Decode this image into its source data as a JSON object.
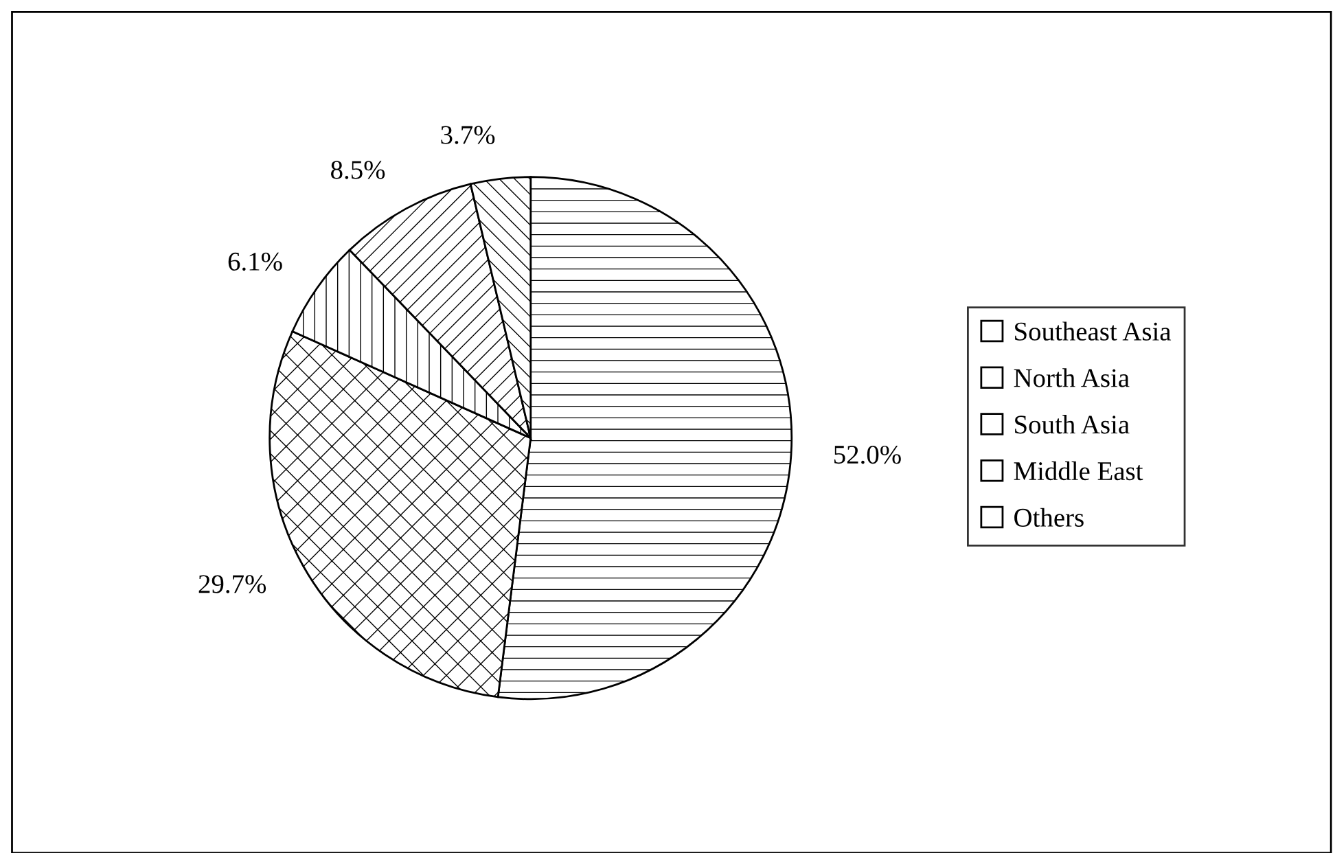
{
  "chart_data": {
    "type": "pie",
    "categories": [
      "Southeast Asia",
      "North Asia",
      "South Asia",
      "Middle East",
      "Others"
    ],
    "values": [
      52.0,
      29.7,
      6.1,
      8.5,
      3.7
    ],
    "colors": [
      "#ffffff",
      "#ffffff",
      "#ffffff",
      "#ffffff",
      "#ffffff"
    ],
    "value_labels": [
      "52.0%",
      "29.7%",
      "6.1%",
      "8.5%",
      "3.7%"
    ],
    "legend": "right"
  }
}
